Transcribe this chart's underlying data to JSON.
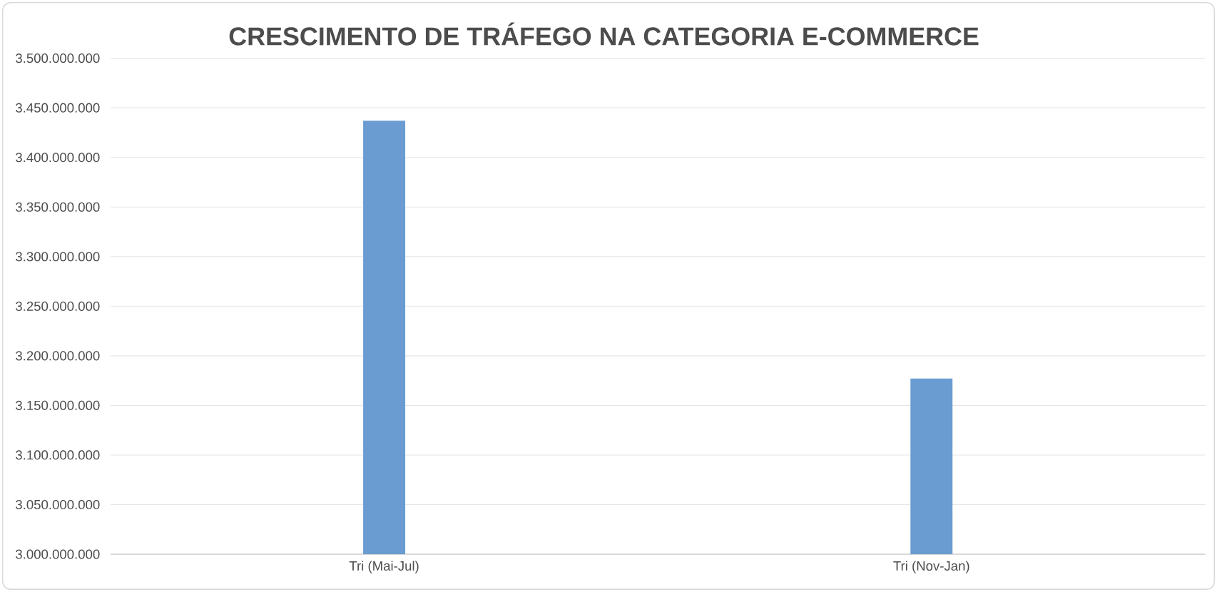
{
  "chart_data": {
    "type": "bar",
    "title": "CRESCIMENTO DE TRÁFEGO NA CATEGORIA E-COMMERCE",
    "categories": [
      "Tri (Mai-Jul)",
      "Tri (Nov-Jan)"
    ],
    "values": [
      3437000000,
      3177000000
    ],
    "color": "#6a9bd1",
    "ylim": [
      3000000000,
      3500000000
    ],
    "yticks": [
      {
        "value": 3000000000,
        "label": "3.000.000.000"
      },
      {
        "value": 3050000000,
        "label": "3.050.000.000"
      },
      {
        "value": 3100000000,
        "label": "3.100.000.000"
      },
      {
        "value": 3150000000,
        "label": "3.150.000.000"
      },
      {
        "value": 3200000000,
        "label": "3.200.000.000"
      },
      {
        "value": 3250000000,
        "label": "3.250.000.000"
      },
      {
        "value": 3300000000,
        "label": "3.300.000.000"
      },
      {
        "value": 3350000000,
        "label": "3.350.000.000"
      },
      {
        "value": 3400000000,
        "label": "3.400.000.000"
      },
      {
        "value": 3450000000,
        "label": "3.450.000.000"
      },
      {
        "value": 3500000000,
        "label": "3.500.000.000"
      }
    ],
    "grid": "y"
  }
}
